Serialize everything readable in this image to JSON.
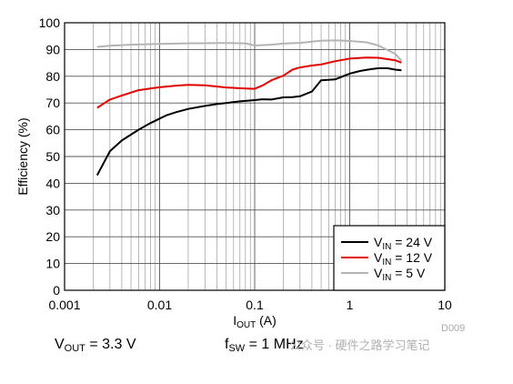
{
  "chart_data": {
    "type": "line",
    "xscale": "log",
    "xlim": [
      0.001,
      10
    ],
    "ylim": [
      0,
      100
    ],
    "grid": true,
    "legend_position": "bottom-right",
    "x_ticks": [
      "0.001",
      "0.01",
      "0.1",
      "1",
      "10"
    ],
    "y_ticks": [
      "0",
      "10",
      "20",
      "30",
      "40",
      "50",
      "60",
      "70",
      "80",
      "90",
      "100"
    ],
    "ylabel": "Efficiency (%)",
    "xlabel": {
      "main": "I",
      "sub": "OUT",
      "unit": " (A)"
    },
    "series": [
      {
        "name": "VIN = 24 V",
        "label": {
          "main": "V",
          "sub": "IN",
          "rest": " = 24 V"
        },
        "color": "#000000",
        "points": [
          [
            0.0022,
            43
          ],
          [
            0.003,
            52
          ],
          [
            0.004,
            56
          ],
          [
            0.006,
            60
          ],
          [
            0.008,
            62.5
          ],
          [
            0.01,
            64.2
          ],
          [
            0.012,
            65.5
          ],
          [
            0.015,
            66.6
          ],
          [
            0.02,
            67.8
          ],
          [
            0.03,
            68.9
          ],
          [
            0.04,
            69.6
          ],
          [
            0.05,
            70.0
          ],
          [
            0.07,
            70.6
          ],
          [
            0.1,
            71.1
          ],
          [
            0.12,
            71.4
          ],
          [
            0.15,
            71.3
          ],
          [
            0.2,
            72.1
          ],
          [
            0.25,
            72.2
          ],
          [
            0.3,
            72.5
          ],
          [
            0.4,
            74.3
          ],
          [
            0.5,
            78.5
          ],
          [
            0.7,
            78.8
          ],
          [
            1,
            81
          ],
          [
            1.3,
            82
          ],
          [
            1.7,
            82.7
          ],
          [
            2,
            83
          ],
          [
            2.5,
            83
          ],
          [
            3,
            82.5
          ],
          [
            3.5,
            82.2
          ]
        ]
      },
      {
        "name": "VIN = 12 V",
        "label": {
          "main": "V",
          "sub": "IN",
          "rest": " = 12 V"
        },
        "color": "#e00000",
        "points": [
          [
            0.0022,
            68.2
          ],
          [
            0.003,
            71.3
          ],
          [
            0.004,
            72.8
          ],
          [
            0.006,
            74.8
          ],
          [
            0.008,
            75.4
          ],
          [
            0.01,
            75.9
          ],
          [
            0.015,
            76.5
          ],
          [
            0.02,
            76.8
          ],
          [
            0.03,
            76.6
          ],
          [
            0.05,
            75.8
          ],
          [
            0.07,
            75.5
          ],
          [
            0.1,
            75.3
          ],
          [
            0.12,
            76.5
          ],
          [
            0.15,
            78.5
          ],
          [
            0.2,
            80.2
          ],
          [
            0.25,
            82.5
          ],
          [
            0.3,
            83.3
          ],
          [
            0.4,
            84
          ],
          [
            0.5,
            84.4
          ],
          [
            0.7,
            85.6
          ],
          [
            1,
            86.6
          ],
          [
            1.5,
            87
          ],
          [
            2,
            86.9
          ],
          [
            3,
            86.0
          ],
          [
            3.5,
            85.1
          ]
        ]
      },
      {
        "name": "VIN = 5 V",
        "label": {
          "main": "V",
          "sub": "IN",
          "rest": " = 5 V"
        },
        "color": "#b4b4b4",
        "points": [
          [
            0.0022,
            91
          ],
          [
            0.003,
            91.4
          ],
          [
            0.005,
            91.8
          ],
          [
            0.01,
            92.1
          ],
          [
            0.02,
            92.3
          ],
          [
            0.05,
            92.4
          ],
          [
            0.08,
            92.3
          ],
          [
            0.1,
            91.5
          ],
          [
            0.15,
            91.8
          ],
          [
            0.2,
            92.2
          ],
          [
            0.3,
            92.5
          ],
          [
            0.5,
            93.3
          ],
          [
            0.7,
            93.4
          ],
          [
            1,
            93.2
          ],
          [
            1.5,
            92.7
          ],
          [
            2,
            91.5
          ],
          [
            3,
            88.4
          ],
          [
            3.5,
            85.8
          ]
        ]
      }
    ]
  },
  "footer": {
    "vout": {
      "main": "V",
      "sub": "OUT",
      "rest": " = 3.3 V"
    },
    "fsw": {
      "main": "f",
      "sub": "SW",
      "rest": " = 1 MHz"
    }
  },
  "figure_code": "D009",
  "watermark": "公众号 · 硬件之路学习笔记"
}
